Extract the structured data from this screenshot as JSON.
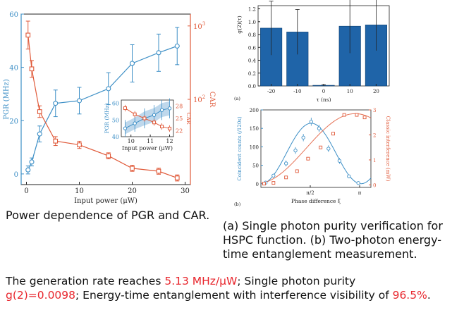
{
  "captions": {
    "left": "Power dependence of PGR and CAR.",
    "right_line1": "(a) Single photon purity verification for",
    "right_line2": "HSPC function. (b) Two-photon energy-",
    "right_line3": "time entanglement measurement."
  },
  "summary": {
    "part1": "The generation rate reaches ",
    "rate": "5.13 MHz/μW",
    "part2": "; Single photon purity",
    "g2": "g(2)=0.0098",
    "part3": "; Energy-time entanglement with interference visibility of ",
    "visibility": "96.5%",
    "part4": "."
  },
  "colors": {
    "pgr": "#3d8fc6",
    "car": "#e05a3a",
    "bar": "#1f64a8",
    "highlight": "#e8262d"
  },
  "chart_data": [
    {
      "type": "line",
      "xlabel": "Input power (μW)",
      "ylabel": "PGR (MHz)",
      "y2label": "CAR",
      "xlim": [
        -1,
        31
      ],
      "ylim": [
        -4,
        60
      ],
      "xticks": [
        0,
        10,
        20,
        30
      ],
      "yticks": [
        0,
        20,
        40,
        60
      ],
      "y2scale": "log",
      "y2lim": [
        6.9,
        1450
      ],
      "y2ticks": [
        {
          "v": 1000,
          "l": "10",
          "e": "3"
        },
        {
          "v": 100,
          "l": "10",
          "e": "2"
        }
      ],
      "series": [
        {
          "axis": "left",
          "marker": "circle",
          "x": [
            0.3,
            1,
            2.5,
            5.5,
            10,
            15.5,
            20,
            25,
            28.5
          ],
          "y": [
            1.5,
            4.5,
            15,
            26.5,
            27.5,
            32,
            41.5,
            45.5,
            48
          ],
          "err": [
            1.5,
            1.5,
            3,
            5,
            5,
            6,
            7,
            7,
            7
          ]
        },
        {
          "axis": "right",
          "marker": "square",
          "x": [
            0.3,
            1,
            2.5,
            5.5,
            10,
            15.5,
            20,
            25,
            28.5
          ],
          "y": [
            750,
            260,
            68,
            27,
            24,
            17,
            11.5,
            10.5,
            8.5
          ],
          "err_factor": [
            1.55,
            1.3,
            1.2,
            1.15,
            1.12,
            1.1,
            1.1,
            1.1,
            1.1
          ]
        }
      ],
      "inset": {
        "xlabel": "Input power (μW)",
        "ylabel": "PGR (MHz)",
        "y2label": "CAR",
        "xlim": [
          9.5,
          12.2
        ],
        "ylim": [
          40,
          62
        ],
        "xticks": [
          10,
          11,
          12
        ],
        "yticks": [
          40,
          50,
          60
        ],
        "y2lim": [
          20.5,
          29.5
        ],
        "y2ticks": [
          22,
          25,
          28
        ],
        "pgr": {
          "x": [
            9.7,
            10.2,
            10.7,
            11.2,
            11.6,
            12.0
          ],
          "y": [
            45,
            48,
            51,
            53,
            56,
            57
          ],
          "err": [
            5,
            5,
            6,
            6,
            6,
            6
          ]
        },
        "car": {
          "x": [
            9.7,
            10.2,
            10.7,
            11.2,
            11.6,
            12.0
          ],
          "y": [
            27.5,
            26,
            25,
            24,
            23,
            22.5
          ],
          "err": [
            0.8,
            0.8,
            0.8,
            0.8,
            0.8,
            0.8
          ]
        }
      }
    },
    {
      "type": "bar",
      "panel": "(a)",
      "xlabel": "τ (ns)",
      "ylabel": "g(2)(τ)",
      "categories": [
        "-20",
        "-10",
        "0",
        "10",
        "20"
      ],
      "values": [
        0.9,
        0.84,
        0.01,
        0.93,
        0.95
      ],
      "err": [
        0.42,
        0.35,
        0.01,
        0.42,
        0.4
      ],
      "ylim": [
        0,
        1.25
      ],
      "yticks": [
        0,
        0.2,
        0.4,
        0.6,
        0.8,
        1.0,
        1.2
      ]
    },
    {
      "type": "scatter",
      "panel": "(b)",
      "xlabel": "Phase difference ξ",
      "ylabel": "Coincident counts (/120s)",
      "y2label": "Classic interference (mW)",
      "xlim": [
        0,
        3.5
      ],
      "ylim": [
        -10,
        200
      ],
      "yticks": [
        0,
        50,
        100,
        150,
        200
      ],
      "y2lim": [
        -0.1,
        3.0
      ],
      "y2ticks": [
        0,
        1,
        2,
        3
      ],
      "xticks": [
        {
          "v": 1.5708,
          "l": "π/2"
        },
        {
          "v": 3.1416,
          "l": "π"
        }
      ],
      "series": [
        {
          "name": "coincidence",
          "axis": "left",
          "marker": "circle",
          "x": [
            0.15,
            0.4,
            0.8,
            1.1,
            1.35,
            1.6,
            1.85,
            2.15,
            2.5,
            2.8,
            3.1
          ],
          "y": [
            3,
            22,
            55,
            90,
            125,
            168,
            150,
            95,
            62,
            20,
            2
          ],
          "err": [
            3,
            5,
            8,
            9,
            10,
            11,
            10,
            9,
            8,
            5,
            3
          ],
          "fit_amp": 82,
          "fit_offset": 82,
          "fit_phase": 1.6
        },
        {
          "name": "classic",
          "axis": "right",
          "marker": "square",
          "x": [
            0.1,
            0.4,
            0.8,
            1.15,
            1.5,
            1.9,
            2.3,
            2.65,
            3.05,
            3.3
          ],
          "y": [
            0.05,
            0.08,
            0.3,
            0.55,
            1.05,
            1.5,
            2.05,
            2.8,
            2.8,
            2.7
          ],
          "fit_amp": 1.4,
          "fit_offset": 1.45,
          "fit_phase": 3.0
        }
      ]
    }
  ]
}
